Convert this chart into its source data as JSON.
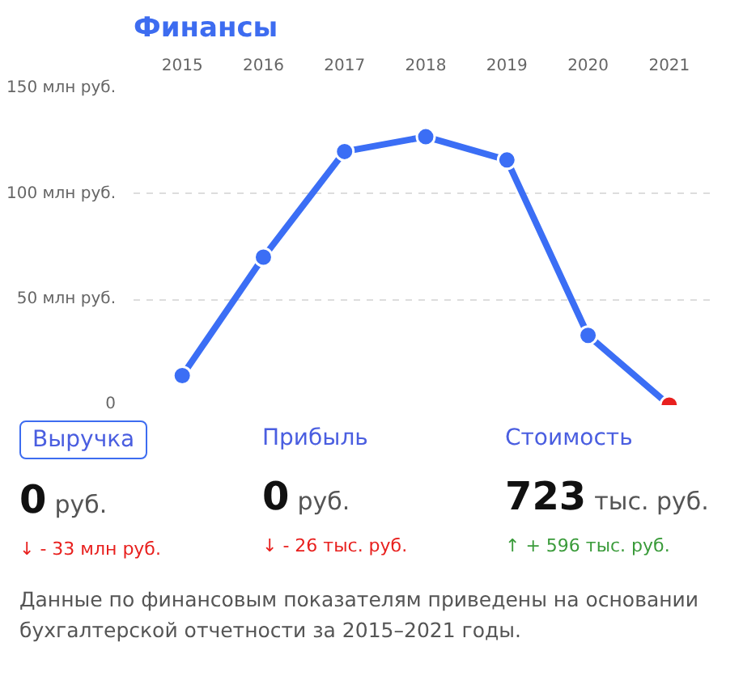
{
  "chart_data": {
    "type": "line",
    "title": "Финансы",
    "categories": [
      "2015",
      "2016",
      "2017",
      "2018",
      "2019",
      "2020",
      "2021"
    ],
    "series": [
      {
        "color": "#3b6ef5",
        "values": [
          14,
          70,
          120,
          127,
          116,
          33,
          0
        ],
        "colors": [
          "#3b6ef5",
          "#3b6ef5",
          "#3b6ef5",
          "#3b6ef5",
          "#3b6ef5",
          "#3b6ef5",
          "#e8201e"
        ]
      }
    ],
    "ylim": [
      0,
      150
    ],
    "yticks": [
      {
        "value": 0,
        "label": "0"
      },
      {
        "value": 50,
        "label": "50 млн руб."
      },
      {
        "value": 100,
        "label": "100 млн руб."
      },
      {
        "value": 150,
        "label": "150 млн руб."
      }
    ],
    "grid": "y",
    "marker": "circle",
    "line_style": "solid",
    "annotations": [
      "Выручка",
      "Прибыль",
      "Стоимость",
      "0",
      "руб.",
      "0",
      "руб.",
      "723",
      "тыс. руб.",
      "↓ - 33 млн руб.",
      "↓ - 26 тыс. руб.",
      "↑ + 596 тыс. руб.",
      "Данные по финансовым показателям приведены на основании бухгалтерской отчетности за 2015–2021 годы."
    ]
  }
}
